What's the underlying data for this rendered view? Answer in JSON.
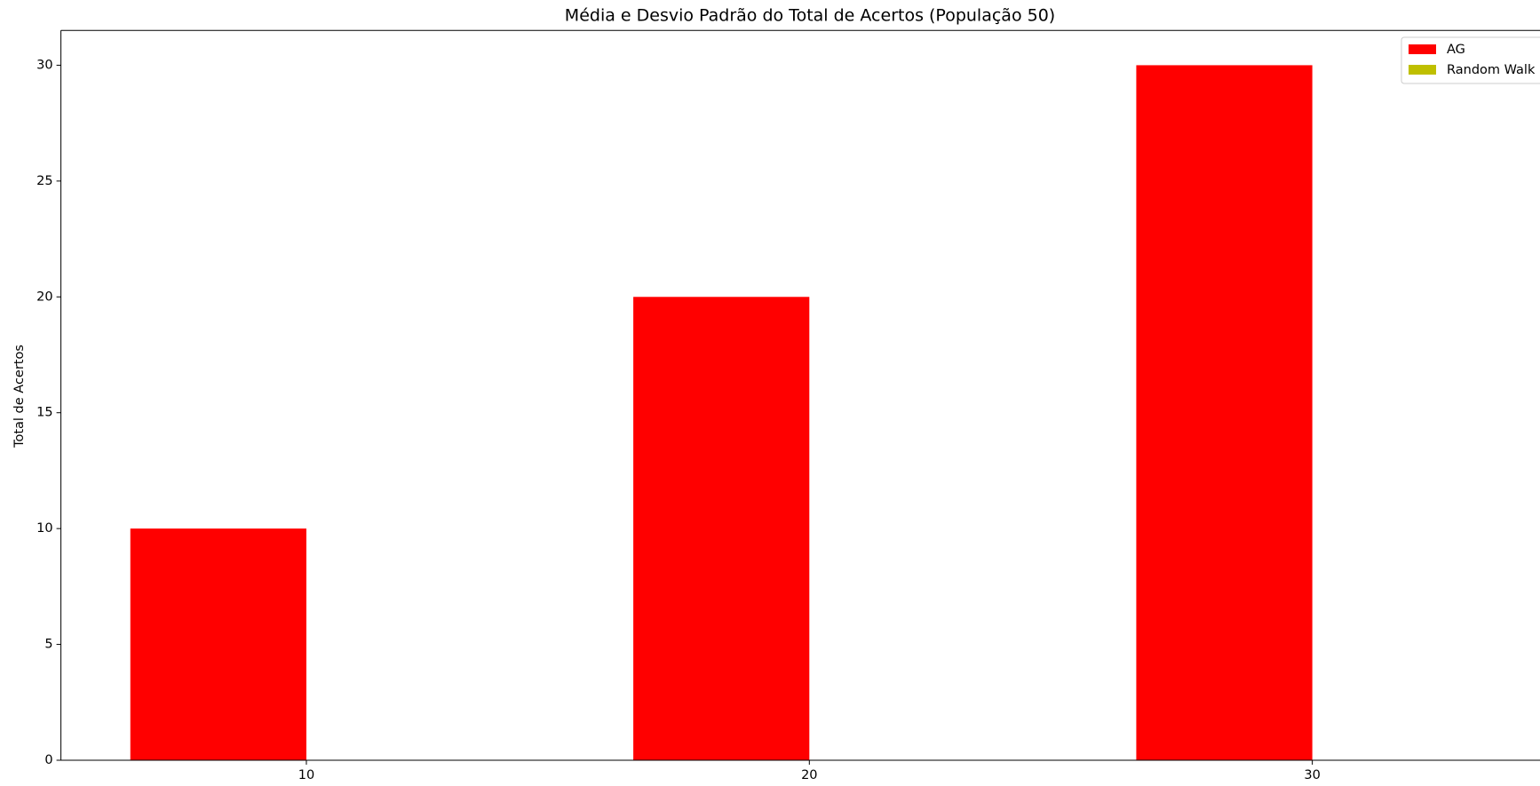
{
  "chart_data": {
    "type": "bar",
    "title": "Média e Desvio Padrão do Total de Acertos (População 50)",
    "y_label": "Total de Acertos",
    "x": [
      10,
      20,
      30
    ],
    "series": [
      {
        "name": "AG",
        "color": "#ff0000",
        "values": [
          10,
          20,
          30
        ]
      },
      {
        "name": "Random Walk",
        "color": "#bfbf00",
        "values": [
          0,
          0,
          0
        ]
      }
    ],
    "xlim": [
      5.12,
      34.88
    ],
    "xticks": [
      10,
      20,
      30
    ],
    "ylim": [
      0,
      31.5
    ],
    "yticks": [
      0,
      5,
      10,
      15,
      20,
      25,
      30
    ],
    "legend": "upper right"
  }
}
